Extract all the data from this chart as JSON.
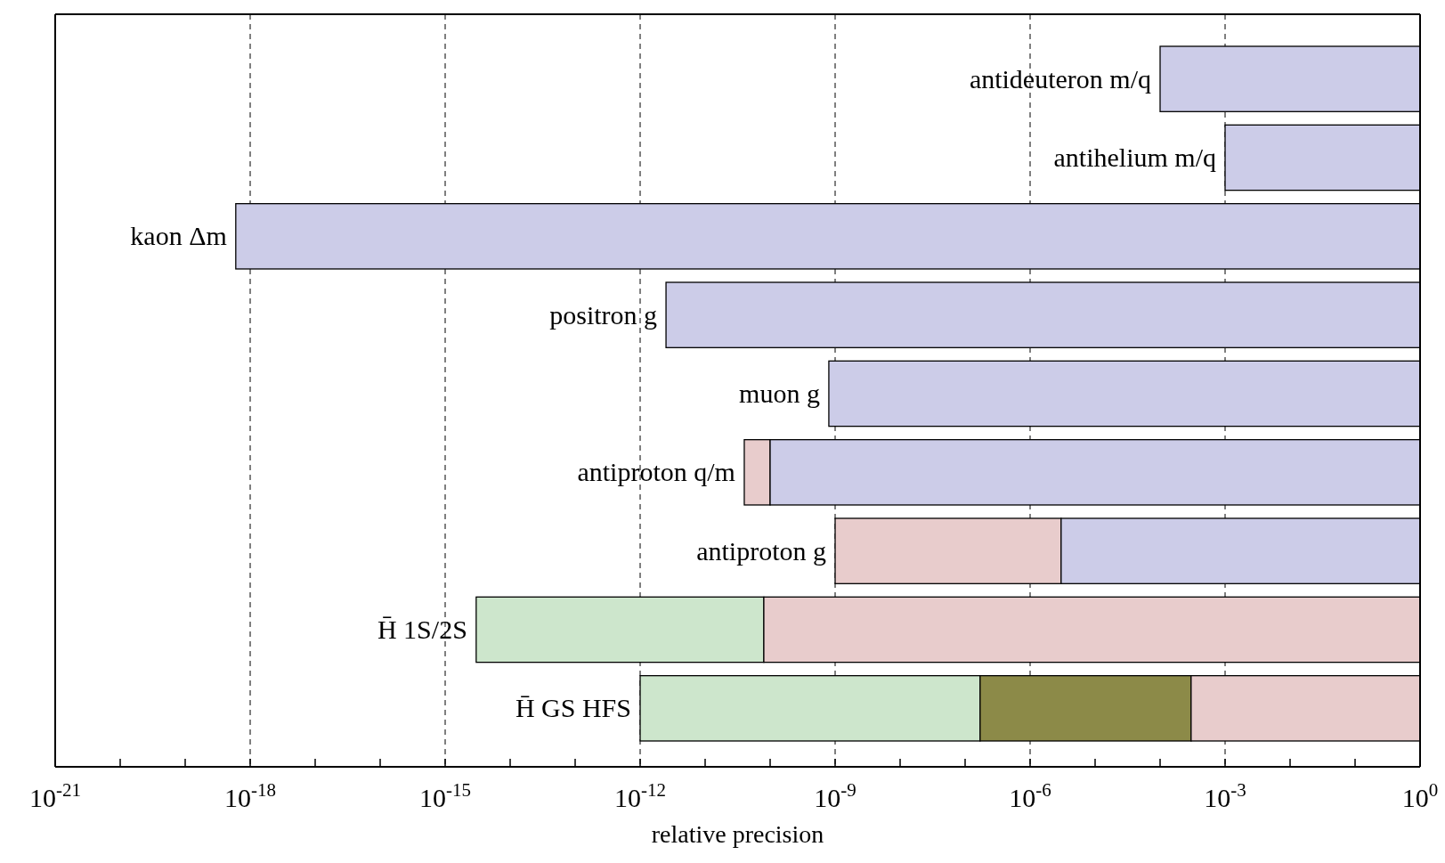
{
  "chart_data": {
    "type": "bar",
    "orientation": "horizontal",
    "log": "x",
    "xlabel": "relative precision",
    "categories": [
      "antideuteron m/q",
      "antihelium m/q",
      "kaon Δm",
      "positron g",
      "muon g",
      "antiproton q/m",
      "antiproton g",
      "H̄ 1S/2S",
      "H̄ GS HFS"
    ],
    "series": [
      {
        "color": "#cde6cc",
        "base": [
          null,
          null,
          null,
          null,
          null,
          null,
          null,
          3e-15,
          1e-12
        ],
        "values": [
          null,
          null,
          null,
          null,
          null,
          null,
          null,
          8e-11,
          1.7e-07
        ]
      },
      {
        "color": "#8c8a48",
        "base": [
          null,
          null,
          null,
          null,
          null,
          null,
          null,
          null,
          1.7e-07
        ],
        "values": [
          null,
          null,
          null,
          null,
          null,
          null,
          null,
          null,
          0.0003
        ]
      },
      {
        "color": "#e8cccc",
        "base": [
          null,
          null,
          null,
          null,
          null,
          4e-11,
          1e-09,
          8e-11,
          0.0003
        ],
        "values": [
          null,
          null,
          null,
          null,
          null,
          6e-11,
          3e-06,
          1,
          0.9997
        ]
      },
      {
        "color": "#cccce8",
        "base": [
          0.0001,
          0.001,
          6e-19,
          2.5e-12,
          8e-10,
          1e-10,
          3e-06,
          null,
          null
        ],
        "values": [
          0.9999,
          0.999,
          1,
          1,
          1,
          1,
          0.999997,
          null,
          null
        ]
      }
    ],
    "xlim": [
      1e-21,
      1
    ],
    "xticks": [
      {
        "value": 1e-21,
        "label": "10$^{-21}$"
      },
      {
        "value": 1e-20,
        "label": null
      },
      {
        "value": 1e-19,
        "label": null
      },
      {
        "value": 1e-18,
        "label": "10$^{-18}$"
      },
      {
        "value": 1e-17,
        "label": null
      },
      {
        "value": 1e-16,
        "label": null
      },
      {
        "value": 1e-15,
        "label": "10$^{-15}$"
      },
      {
        "value": 1e-14,
        "label": null
      },
      {
        "value": 1e-13,
        "label": null
      },
      {
        "value": 1e-12,
        "label": "10$^{-12}$"
      },
      {
        "value": 1e-11,
        "label": null
      },
      {
        "value": 1e-10,
        "label": null
      },
      {
        "value": 1e-09,
        "label": "10$^{-9}$"
      },
      {
        "value": 1e-08,
        "label": null
      },
      {
        "value": 1e-07,
        "label": null
      },
      {
        "value": 1e-06,
        "label": "10$^{-6}$"
      },
      {
        "value": 1e-05,
        "label": null
      },
      {
        "value": 0.0001,
        "label": null
      },
      {
        "value": 0.001,
        "label": "10$^{-3}$"
      },
      {
        "value": 0.01,
        "label": null
      },
      {
        "value": 0.1,
        "label": null
      },
      {
        "value": 1,
        "label": "10$^{0}$"
      }
    ],
    "grid": "x",
    "line_style": "dashed"
  }
}
